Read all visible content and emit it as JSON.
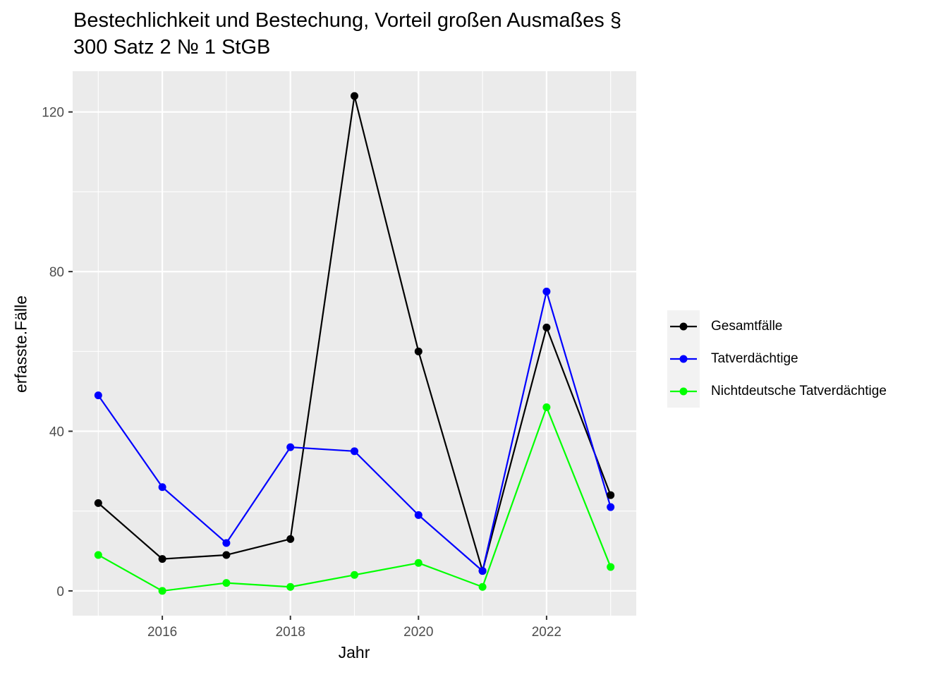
{
  "chart_data": {
    "type": "line",
    "title": "Bestechlichkeit und Bestechung, Vorteil großen Ausmaßes §\n300 Satz 2 № 1 StGB",
    "xlabel": "Jahr",
    "ylabel": "erfasste.Fälle",
    "x": [
      2015,
      2016,
      2017,
      2018,
      2019,
      2020,
      2021,
      2022,
      2023
    ],
    "xticks": [
      2016,
      2018,
      2020,
      2022
    ],
    "yticks": [
      0,
      40,
      80,
      120
    ],
    "xlim": [
      2014.6,
      2023.4
    ],
    "ylim": [
      -6.2,
      130.2
    ],
    "grid": true,
    "legend_position": "right",
    "series": [
      {
        "name": "Gesamtfälle",
        "color": "#000000",
        "values": [
          22,
          8,
          9,
          13,
          124,
          60,
          5,
          66,
          24
        ]
      },
      {
        "name": "Tatverdächtige",
        "color": "#0000ff",
        "values": [
          49,
          26,
          12,
          36,
          35,
          19,
          5,
          75,
          21
        ]
      },
      {
        "name": "Nichtdeutsche Tatverdächtige",
        "color": "#00ff00",
        "values": [
          9,
          0,
          2,
          1,
          4,
          7,
          1,
          46,
          6
        ]
      }
    ]
  }
}
